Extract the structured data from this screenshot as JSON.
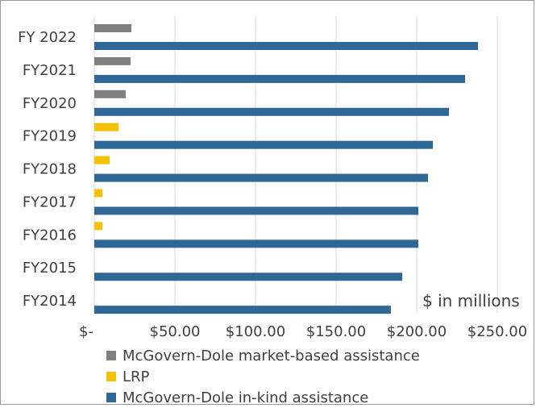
{
  "chart_data": {
    "type": "bar",
    "orientation": "horizontal",
    "categories": [
      "FY 2022",
      "FY2021",
      "FY2020",
      "FY2019",
      "FY2018",
      "FY2017",
      "FY2016",
      "FY2015",
      "FY2014"
    ],
    "series": [
      {
        "name": "McGovern-Dole market-based assistance",
        "color": "#808080",
        "values": [
          23,
          22.5,
          19.5,
          null,
          null,
          null,
          null,
          null,
          null
        ]
      },
      {
        "name": "LRP",
        "color": "#f4c200",
        "values": [
          null,
          null,
          null,
          15,
          9.5,
          5,
          5,
          null,
          null
        ]
      },
      {
        "name": "McGovern-Dole in-kind assistance",
        "color": "#2f6796",
        "values": [
          238,
          230,
          220,
          210,
          207,
          201,
          201,
          191,
          184
        ]
      }
    ],
    "x_ticks": [
      "$-",
      "$50.00",
      "$100.00",
      "$150.00",
      "$200.00",
      "$250.00"
    ],
    "xlim": [
      0,
      250
    ],
    "unit_label": "$ in millions",
    "grid": "vertical",
    "legend_position": "bottom-left"
  }
}
